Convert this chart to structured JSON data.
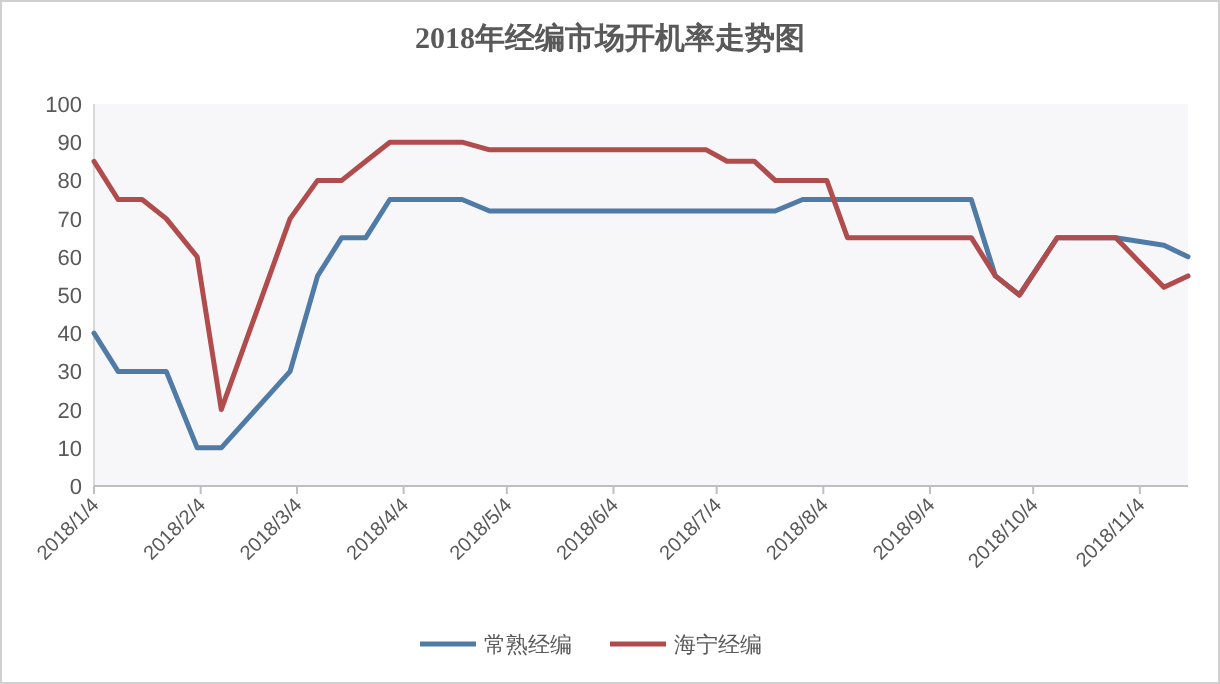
{
  "chart_data": {
    "type": "line",
    "title": "2018年经编市场开机率走势图",
    "x": [
      "2018-01-04",
      "2018-01-11",
      "2018-01-18",
      "2018-01-25",
      "2018-02-03",
      "2018-02-10",
      "2018-03-02",
      "2018-03-10",
      "2018-03-17",
      "2018-03-24",
      "2018-03-31",
      "2018-04-09",
      "2018-04-14",
      "2018-04-21",
      "2018-04-29",
      "2018-05-05",
      "2018-05-12",
      "2018-05-19",
      "2018-05-26",
      "2018-06-02",
      "2018-06-09",
      "2018-06-16",
      "2018-06-24",
      "2018-07-01",
      "2018-07-07",
      "2018-07-15",
      "2018-07-21",
      "2018-07-29",
      "2018-08-05",
      "2018-08-11",
      "2018-08-19",
      "2018-08-26",
      "2018-09-02",
      "2018-09-09",
      "2018-09-16",
      "2018-09-23",
      "2018-09-30",
      "2018-10-11",
      "2018-10-22",
      "2018-10-28",
      "2018-11-11",
      "2018-11-18"
    ],
    "series": [
      {
        "name": "常熟经编",
        "color": "#4f7ba6",
        "values": [
          40,
          30,
          30,
          30,
          10,
          10,
          30,
          55,
          65,
          65,
          75,
          75,
          75,
          75,
          72,
          72,
          72,
          72,
          72,
          72,
          72,
          72,
          72,
          72,
          72,
          72,
          72,
          75,
          75,
          75,
          75,
          75,
          75,
          75,
          75,
          55,
          50,
          65,
          65,
          65,
          63,
          60
        ]
      },
      {
        "name": "海宁经编",
        "color": "#b04c4c",
        "values": [
          85,
          75,
          75,
          70,
          60,
          20,
          70,
          80,
          80,
          85,
          90,
          90,
          90,
          90,
          88,
          88,
          88,
          88,
          88,
          88,
          88,
          88,
          88,
          88,
          85,
          85,
          80,
          80,
          80,
          65,
          65,
          65,
          65,
          65,
          65,
          55,
          50,
          65,
          65,
          65,
          52,
          55
        ]
      }
    ],
    "xlim": [
      "2018-01-04",
      "2018-11-18"
    ],
    "xticks": [
      {
        "value": "2018-01-04",
        "label": "2018/1/4"
      },
      {
        "value": "2018-02-04",
        "label": "2018/2/4"
      },
      {
        "value": "2018-03-04",
        "label": "2018/3/4"
      },
      {
        "value": "2018-04-04",
        "label": "2018/4/4"
      },
      {
        "value": "2018-05-04",
        "label": "2018/5/4"
      },
      {
        "value": "2018-06-04",
        "label": "2018/6/4"
      },
      {
        "value": "2018-07-04",
        "label": "2018/7/4"
      },
      {
        "value": "2018-08-04",
        "label": "2018/8/4"
      },
      {
        "value": "2018-09-04",
        "label": "2018/9/4"
      },
      {
        "value": "2018-10-04",
        "label": "2018/10/4"
      },
      {
        "value": "2018-11-04",
        "label": "2018/11/4"
      }
    ],
    "ylim": [
      0,
      100
    ],
    "yticks": [
      0,
      10,
      20,
      30,
      40,
      50,
      60,
      70,
      80,
      90,
      100
    ],
    "grid": false,
    "legend": "bottom",
    "marker": "none",
    "line_style": "solid"
  }
}
